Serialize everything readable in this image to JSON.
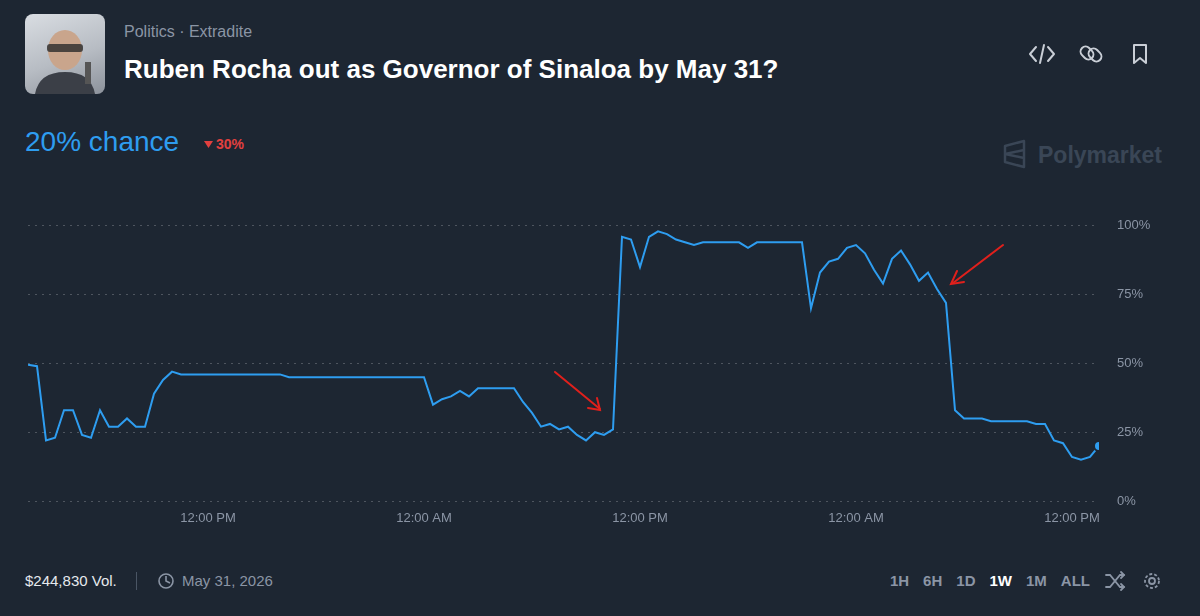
{
  "header": {
    "category": "Politics",
    "separator": "·",
    "tag": "Extradite",
    "title": "Ruben Rocha out as Governor of Sinaloa by May 31?",
    "probability": "20% chance",
    "change": "30%",
    "brand": "Polymarket"
  },
  "chart_data": {
    "type": "line",
    "categories": [
      null,
      null,
      null,
      null,
      null,
      null,
      null,
      null,
      null,
      null,
      null,
      null,
      null,
      null,
      null,
      null,
      null,
      null,
      null,
      null,
      "12:00 PM",
      null,
      null,
      null,
      null,
      null,
      null,
      null,
      null,
      null,
      null,
      null,
      null,
      null,
      null,
      null,
      null,
      null,
      null,
      null,
      null,
      null,
      null,
      null,
      "12:00 AM",
      null,
      null,
      null,
      null,
      null,
      null,
      null,
      null,
      null,
      null,
      null,
      null,
      null,
      null,
      null,
      null,
      null,
      null,
      null,
      null,
      null,
      null,
      null,
      "12:00 PM",
      null,
      null,
      null,
      null,
      null,
      null,
      null,
      null,
      null,
      null,
      null,
      null,
      null,
      null,
      null,
      null,
      null,
      null,
      null,
      null,
      null,
      null,
      null,
      "12:00 AM",
      null,
      null,
      null,
      null,
      null,
      null,
      null,
      null,
      null,
      null,
      null,
      null,
      null,
      null,
      null,
      null,
      null,
      null,
      null,
      null,
      null,
      null,
      null,
      "12:00 PM",
      null,
      null,
      null
    ],
    "values": [
      49.5,
      49,
      22,
      23,
      33,
      33,
      24,
      23,
      33,
      27,
      27,
      30,
      27,
      27,
      39,
      44,
      47,
      46,
      46,
      46,
      46,
      46,
      46,
      46,
      46,
      46,
      46,
      46,
      46,
      45,
      45,
      45,
      45,
      45,
      45,
      45,
      45,
      45,
      45,
      45,
      45,
      45,
      45,
      45,
      45,
      35,
      37,
      38,
      40,
      38,
      41,
      41,
      41,
      41,
      41,
      36,
      32,
      27,
      28,
      26,
      27,
      24,
      22,
      25,
      24,
      26,
      96,
      95,
      85,
      96,
      98,
      97,
      95,
      94,
      93,
      94,
      94,
      94,
      94,
      94,
      92,
      94,
      94,
      94,
      94,
      94,
      94,
      70,
      83,
      87,
      88,
      92,
      93,
      90,
      84,
      79,
      88,
      91,
      86,
      80,
      83,
      77,
      72,
      33,
      30,
      30,
      30,
      29,
      29,
      29,
      29,
      29,
      28,
      28,
      22,
      21,
      16,
      15,
      16,
      20
    ],
    "color": "#2e9df0",
    "ylim": [
      0,
      100
    ],
    "yticks": [
      {
        "value": 0,
        "label": "0%"
      },
      {
        "value": 25,
        "label": "25%"
      },
      {
        "value": 50,
        "label": "50%"
      },
      {
        "value": 75,
        "label": "75%"
      },
      {
        "value": 100,
        "label": "100%"
      }
    ],
    "grid": true
  },
  "footer": {
    "volume": "$244,830 Vol.",
    "end_date": "May 31, 2026",
    "ranges": [
      "1H",
      "6H",
      "1D",
      "1W",
      "1M",
      "ALL"
    ],
    "selected_range": "1W"
  }
}
